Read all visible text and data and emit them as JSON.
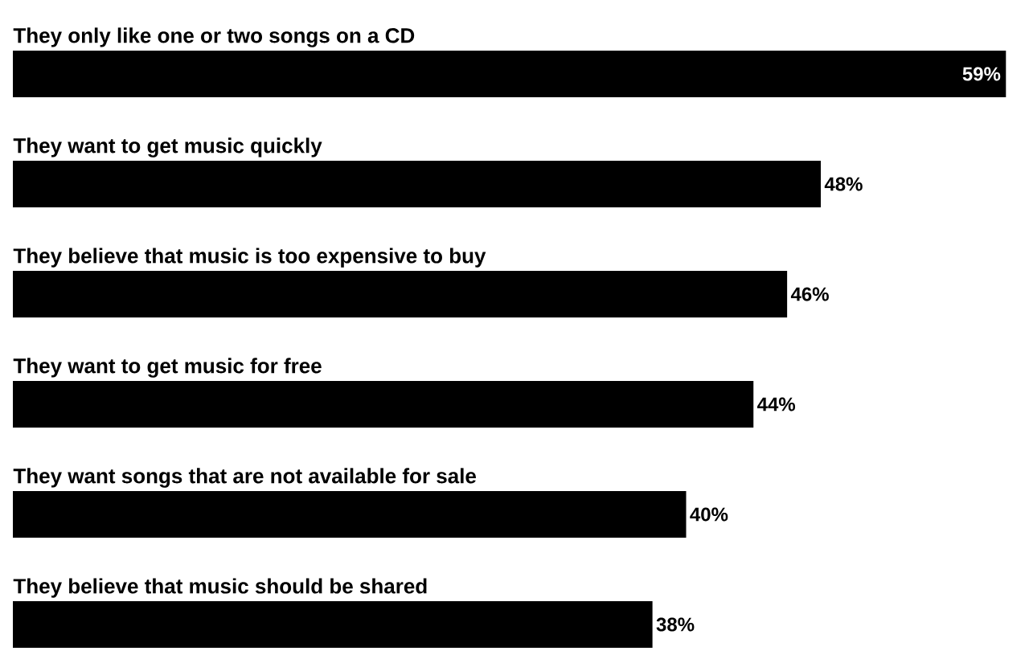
{
  "chart_data": {
    "type": "bar",
    "orientation": "horizontal",
    "categories": [
      "They only like one or two songs on a CD",
      "They want to get music quickly",
      "They believe that music is too expensive to buy",
      "They want to get music for free",
      "They want songs that are not available for sale",
      "They believe that music should be shared"
    ],
    "values": [
      59,
      48,
      46,
      44,
      40,
      38
    ],
    "value_labels": [
      "59%",
      "48%",
      "46%",
      "44%",
      "40%",
      "38%"
    ],
    "color": "#000000"
  }
}
